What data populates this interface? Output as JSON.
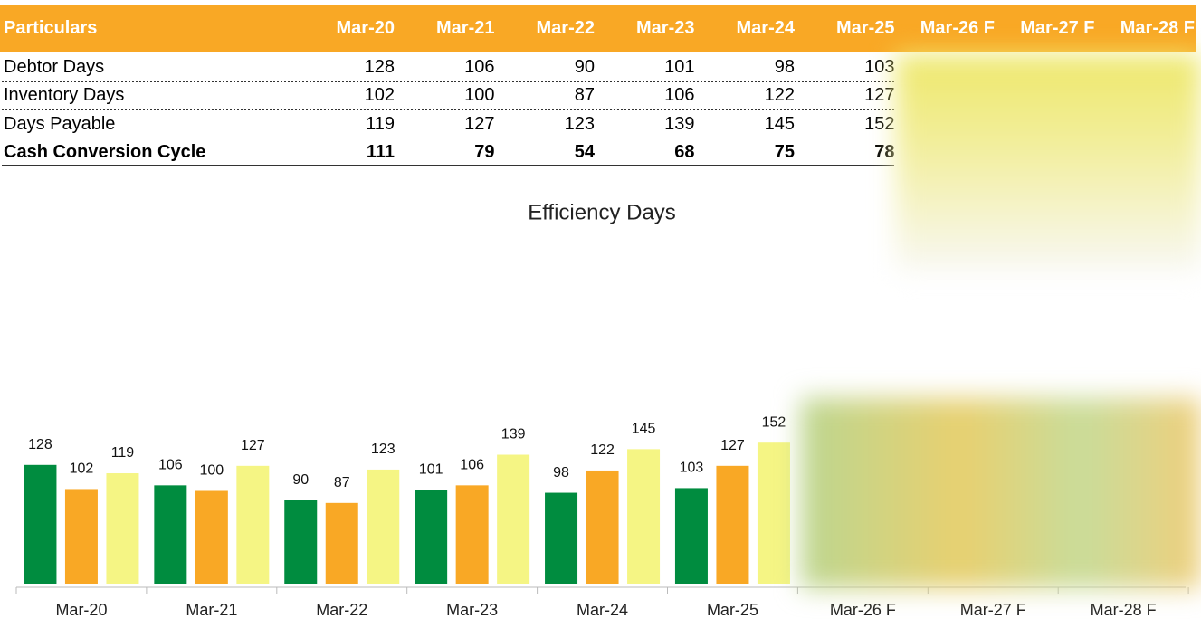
{
  "table": {
    "columns": [
      "Particulars",
      "Mar-20",
      "Mar-21",
      "Mar-22",
      "Mar-23",
      "Mar-24",
      "Mar-25",
      "Mar-26 F",
      "Mar-27 F",
      "Mar-28 F"
    ],
    "rows": [
      {
        "label": "Debtor Days",
        "values": [
          128,
          106,
          90,
          101,
          98,
          103,
          null,
          null,
          null
        ]
      },
      {
        "label": "Inventory Days",
        "values": [
          102,
          100,
          87,
          106,
          122,
          127,
          null,
          null,
          null
        ]
      },
      {
        "label": "Days Payable",
        "values": [
          119,
          127,
          123,
          139,
          145,
          152,
          null,
          null,
          null
        ]
      },
      {
        "label": "Cash Conversion Cycle",
        "values": [
          111,
          79,
          54,
          68,
          75,
          78,
          null,
          null,
          null
        ]
      }
    ]
  },
  "chart_data": {
    "type": "bar",
    "title": "Efficiency Days",
    "categories": [
      "Mar-20",
      "Mar-21",
      "Mar-22",
      "Mar-23",
      "Mar-24",
      "Mar-25",
      "Mar-26 F",
      "Mar-27 F",
      "Mar-28 F"
    ],
    "series": [
      {
        "color": "#008c3f",
        "values": [
          128,
          106,
          90,
          101,
          98,
          103,
          null,
          null,
          null
        ]
      },
      {
        "color": "#f9a825",
        "values": [
          102,
          100,
          87,
          106,
          122,
          127,
          null,
          null,
          null
        ]
      },
      {
        "color": "#f5f584",
        "values": [
          119,
          127,
          123,
          139,
          145,
          152,
          null,
          null,
          null
        ]
      }
    ],
    "ylim": [
      0,
      400
    ]
  }
}
